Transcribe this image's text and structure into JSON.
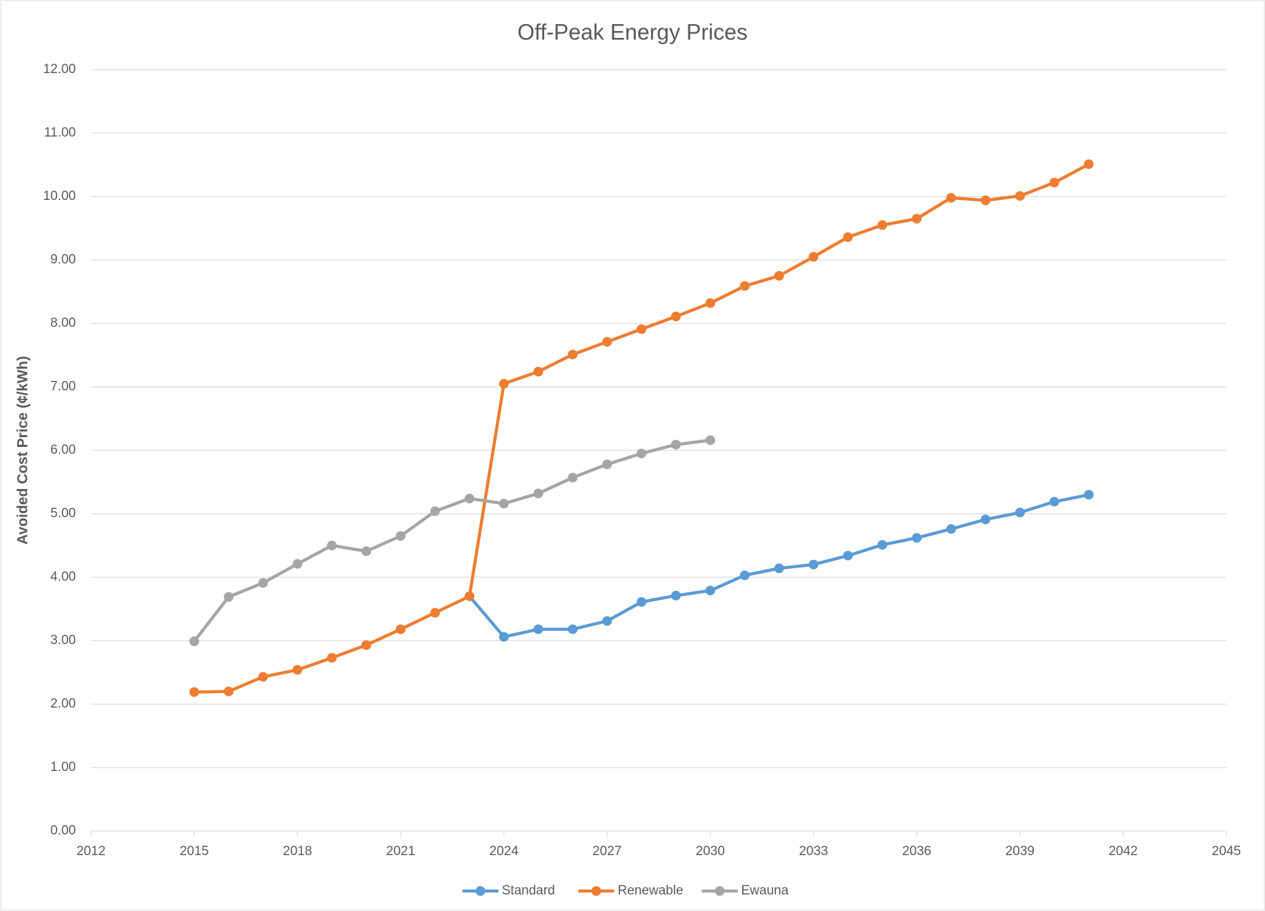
{
  "chart_data": {
    "type": "line",
    "title": "Off-Peak Energy Prices",
    "y_label": "Avoided Cost Price (¢/kWh)",
    "x": [
      2015,
      2016,
      2017,
      2018,
      2019,
      2020,
      2021,
      2022,
      2023,
      2024,
      2025,
      2026,
      2027,
      2028,
      2029,
      2030,
      2031,
      2032,
      2033,
      2034,
      2035,
      2036,
      2037,
      2038,
      2039,
      2040,
      2041
    ],
    "series": [
      {
        "name": "Standard",
        "color": "#5b9bd5",
        "values": [
          null,
          null,
          null,
          null,
          null,
          null,
          null,
          null,
          3.7,
          3.06,
          3.18,
          3.18,
          3.31,
          3.61,
          3.71,
          3.79,
          4.03,
          4.14,
          4.2,
          4.34,
          4.51,
          4.62,
          4.76,
          4.91,
          5.02,
          5.19,
          5.3
        ]
      },
      {
        "name": "Renewable",
        "color": "#ed7d31",
        "values": [
          2.19,
          2.2,
          2.43,
          2.54,
          2.73,
          2.93,
          3.18,
          3.44,
          3.7,
          7.05,
          7.24,
          7.51,
          7.71,
          7.91,
          8.11,
          8.32,
          8.59,
          8.75,
          9.05,
          9.36,
          9.55,
          9.65,
          9.98,
          9.94,
          10.01,
          10.22,
          10.51
        ]
      },
      {
        "name": "Ewauna",
        "color": "#a5a5a5",
        "values": [
          2.99,
          3.69,
          3.91,
          4.21,
          4.5,
          4.41,
          4.65,
          5.04,
          5.24,
          5.16,
          5.32,
          5.57,
          5.78,
          5.95,
          6.09,
          6.16,
          null,
          null,
          null,
          null,
          null,
          null,
          null,
          null,
          null,
          null,
          null
        ]
      }
    ],
    "xlim": [
      2012,
      2045
    ],
    "xticks": [
      2012,
      2015,
      2018,
      2021,
      2024,
      2027,
      2030,
      2033,
      2036,
      2039,
      2042,
      2045
    ],
    "ylim": [
      0,
      12
    ],
    "yticks": [
      {
        "value": 0,
        "label": "0.00"
      },
      {
        "value": 1,
        "label": "1.00"
      },
      {
        "value": 2,
        "label": "2.00"
      },
      {
        "value": 3,
        "label": "3.00"
      },
      {
        "value": 4,
        "label": "4.00"
      },
      {
        "value": 5,
        "label": "5.00"
      },
      {
        "value": 6,
        "label": "6.00"
      },
      {
        "value": 7,
        "label": "7.00"
      },
      {
        "value": 8,
        "label": "8.00"
      },
      {
        "value": 9,
        "label": "9.00"
      },
      {
        "value": 10,
        "label": "10.00"
      },
      {
        "value": 11,
        "label": "11.00"
      },
      {
        "value": 12,
        "label": "12.00"
      }
    ],
    "grid": true,
    "legend": "bottom"
  }
}
